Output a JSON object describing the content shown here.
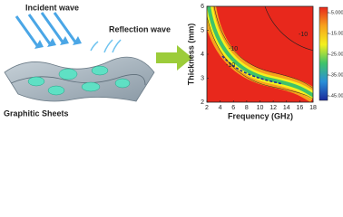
{
  "illustration": {
    "incident": "Incident wave",
    "reflection": "Reflection wave",
    "sheets": "Graphitic Sheets"
  },
  "chart_data": {
    "type": "contour",
    "xlabel": "Frequency (GHz)",
    "ylabel": "Thickness (mm)",
    "xlim": [
      2,
      18
    ],
    "ylim": [
      2,
      6
    ],
    "xticks": [
      2,
      4,
      6,
      8,
      10,
      12,
      14,
      16,
      18
    ],
    "yticks": [
      2,
      3,
      4,
      5,
      6
    ],
    "colorbar": {
      "lim": [
        -45,
        -5
      ],
      "ticks": [
        {
          "value": -5,
          "label": "-5.000"
        },
        {
          "value": -15,
          "label": "-15.00"
        },
        {
          "value": -25,
          "label": "-25.00"
        },
        {
          "value": -35,
          "label": "-35.00"
        },
        {
          "value": -45,
          "label": "-45.00"
        }
      ]
    },
    "annotations": [
      "-10",
      "-10",
      "-10"
    ]
  }
}
